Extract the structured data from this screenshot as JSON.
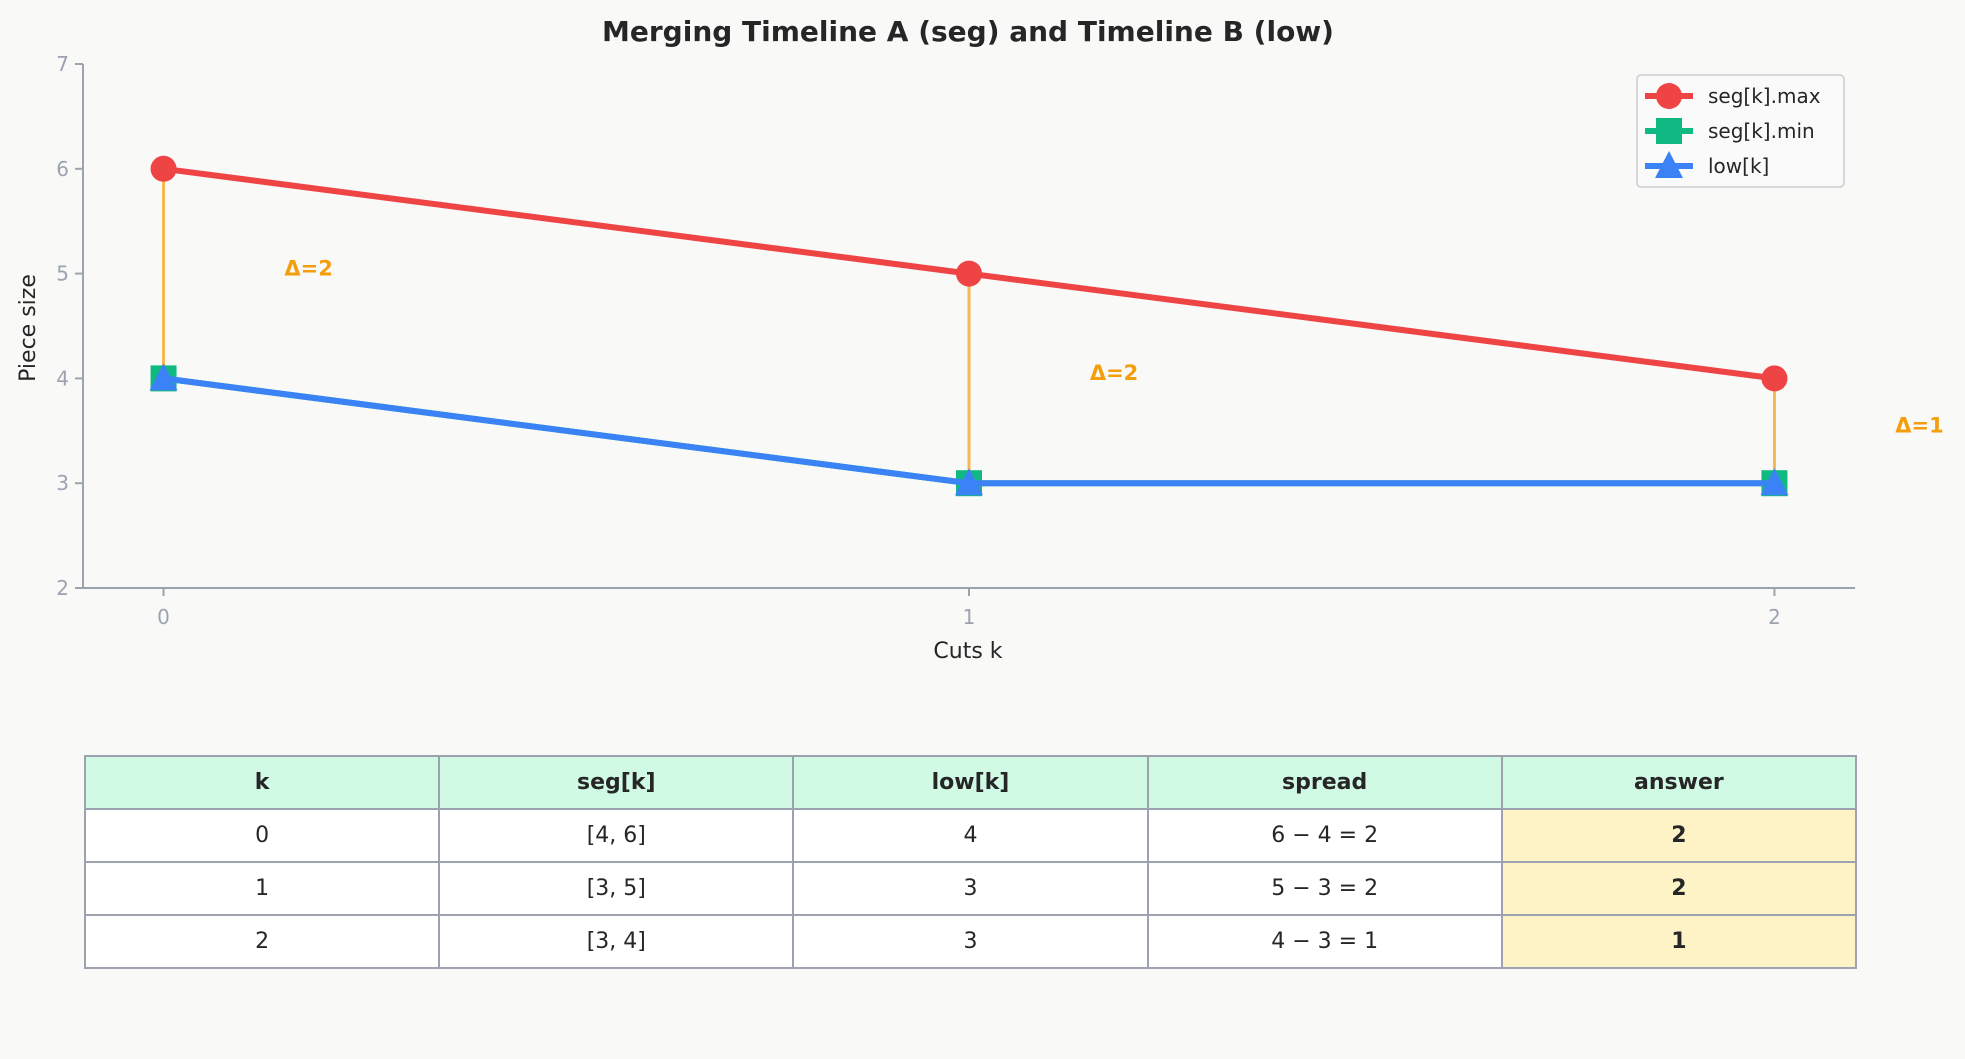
{
  "chart_data": {
    "type": "line",
    "title": "Merging Timeline A (seg) and Timeline B (low)",
    "xlabel": "Cuts k",
    "ylabel": "Piece size",
    "x": [
      0,
      1,
      2
    ],
    "xlim": [
      -0.1,
      2.1
    ],
    "ylim": [
      2,
      7
    ],
    "xticks": [
      0,
      1,
      2
    ],
    "yticks": [
      2,
      3,
      4,
      5,
      6,
      7
    ],
    "grid": false,
    "legend_position": "top-right",
    "series": [
      {
        "name": "seg[k].max",
        "values": [
          6,
          5,
          4
        ],
        "color": "#ef4444",
        "marker": "circle"
      },
      {
        "name": "seg[k].min",
        "values": [
          4,
          3,
          3
        ],
        "color": "#10b981",
        "marker": "square"
      },
      {
        "name": "low[k]",
        "values": [
          4,
          3,
          3
        ],
        "color": "#3b82f6",
        "marker": "triangle"
      }
    ],
    "annotations": [
      {
        "text": "Δ=2",
        "x": 0.15,
        "y": 5.05,
        "arrow_from": 6,
        "arrow_to": 4,
        "arrow_x": 0
      },
      {
        "text": "Δ=2",
        "x": 1.15,
        "y": 4.05,
        "arrow_from": 5,
        "arrow_to": 3,
        "arrow_x": 1
      },
      {
        "text": "Δ=1",
        "x": 2.15,
        "y": 3.55,
        "arrow_from": 4,
        "arrow_to": 3,
        "arrow_x": 2
      }
    ],
    "annotation_color": "#f59e0b"
  },
  "table": {
    "headers": [
      "k",
      "seg[k]",
      "low[k]",
      "spread",
      "answer"
    ],
    "rows": [
      [
        "0",
        "[4, 6]",
        "4",
        "6 − 4 = 2",
        "2"
      ],
      [
        "1",
        "[3, 5]",
        "3",
        "5 − 3 = 2",
        "2"
      ],
      [
        "2",
        "[3, 4]",
        "3",
        "4 − 3 = 1",
        "1"
      ]
    ]
  }
}
